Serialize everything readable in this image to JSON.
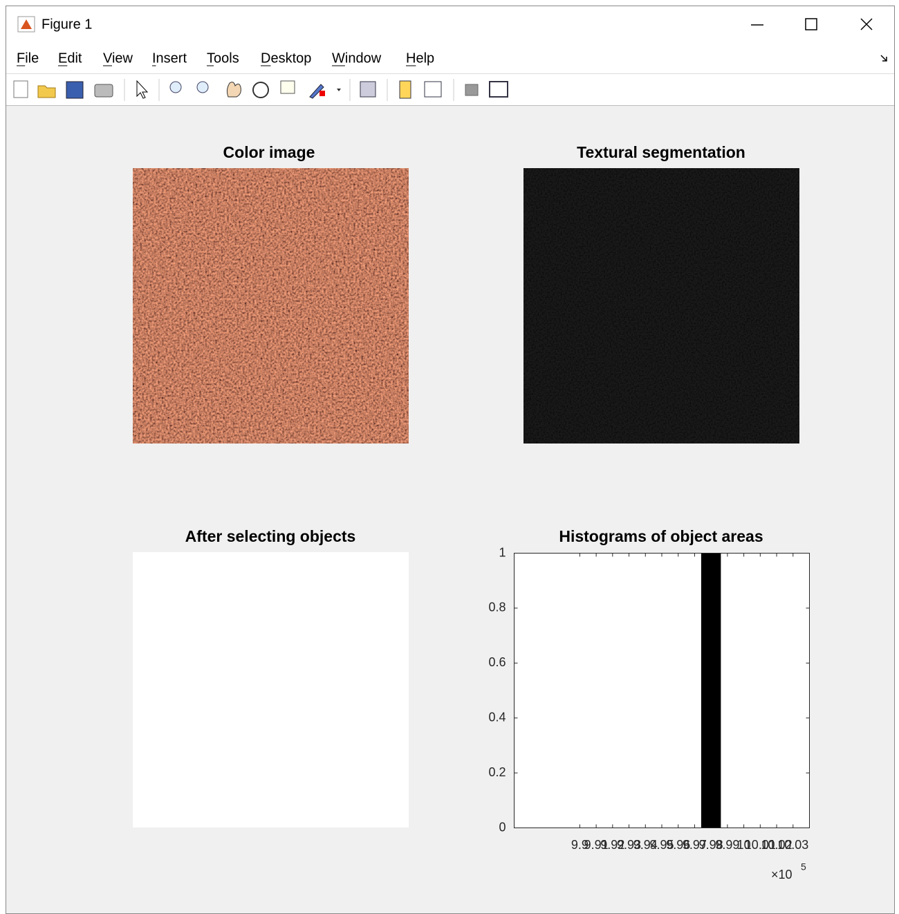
{
  "window": {
    "title": "Figure 1",
    "menu": [
      "File",
      "Edit",
      "View",
      "Insert",
      "Tools",
      "Desktop",
      "Window",
      "Help"
    ]
  },
  "panels": {
    "color_image": {
      "title": "Color image"
    },
    "textural_segmentation": {
      "title": "Textural segmentation"
    },
    "after_selecting": {
      "title": "After selecting objects"
    }
  },
  "chart_data": {
    "type": "histogram",
    "title": "Histograms of object areas",
    "bins": [
      9.974,
      9.986
    ],
    "counts": [
      1
    ],
    "color": "#000000",
    "xlim": [
      9.86,
      10.04
    ],
    "xticks": [
      9.9,
      9.91,
      9.92,
      9.93,
      9.94,
      9.95,
      9.96,
      9.97,
      9.98,
      9.99,
      10,
      10.01,
      10.02,
      10.03
    ],
    "x_multiplier": "×10",
    "x_multiplier_exponent": "5",
    "ylim": [
      0,
      1
    ],
    "yticks": [
      0,
      0.2,
      0.4,
      0.6,
      0.8,
      1
    ]
  }
}
